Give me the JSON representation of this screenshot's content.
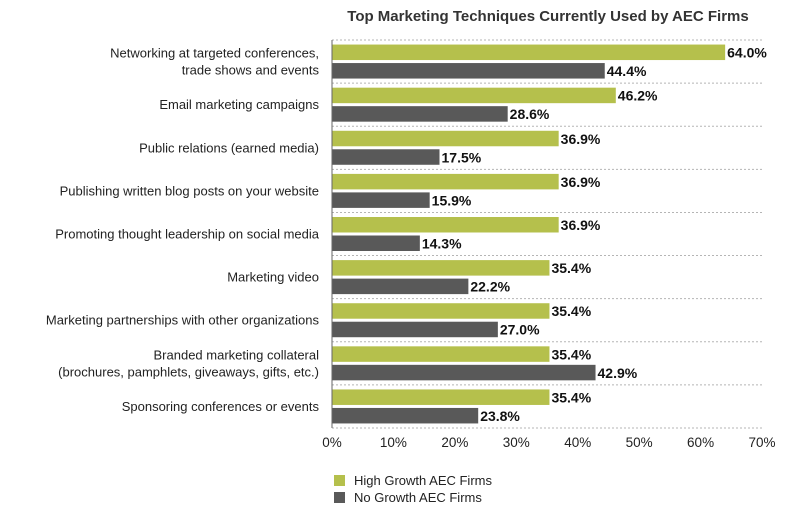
{
  "chart_data": {
    "type": "bar",
    "orientation": "horizontal",
    "title": "Top Marketing Techniques Currently Used by AEC Firms",
    "categories": [
      [
        "Networking at targeted conferences,",
        "trade shows and events"
      ],
      [
        "Email marketing campaigns"
      ],
      [
        "Public relations (earned media)"
      ],
      [
        "Publishing written blog posts on your website"
      ],
      [
        "Promoting thought leadership on social media"
      ],
      [
        "Marketing video"
      ],
      [
        "Marketing partnerships with other organizations"
      ],
      [
        "Branded marketing collateral",
        "(brochures, pamphlets, giveaways, gifts, etc.)"
      ],
      [
        "Sponsoring conferences or events"
      ]
    ],
    "series": [
      {
        "name": "High Growth AEC Firms",
        "color": "#b5c04c",
        "values": [
          64.0,
          46.2,
          36.9,
          36.9,
          36.9,
          35.4,
          35.4,
          35.4,
          35.4
        ],
        "labels": [
          "64.0%",
          "46.2%",
          "36.9%",
          "36.9%",
          "36.9%",
          "35.4%",
          "35.4%",
          "35.4%",
          "35.4%"
        ]
      },
      {
        "name": "No Growth AEC Firms",
        "color": "#595959",
        "values": [
          44.4,
          28.6,
          17.5,
          15.9,
          14.3,
          22.2,
          27.0,
          42.9,
          23.8
        ],
        "labels": [
          "44.4%",
          "28.6%",
          "17.5%",
          "15.9%",
          "14.3%",
          "22.2%",
          "27.0%",
          "42.9%",
          "23.8%"
        ]
      }
    ],
    "xlim": [
      0,
      70
    ],
    "xticks": [
      0,
      10,
      20,
      30,
      40,
      50,
      60,
      70
    ],
    "xtick_labels": [
      "0%",
      "10%",
      "20%",
      "30%",
      "40%",
      "50%",
      "60%",
      "70%"
    ],
    "grid": true,
    "legend_position": "bottom-left"
  }
}
